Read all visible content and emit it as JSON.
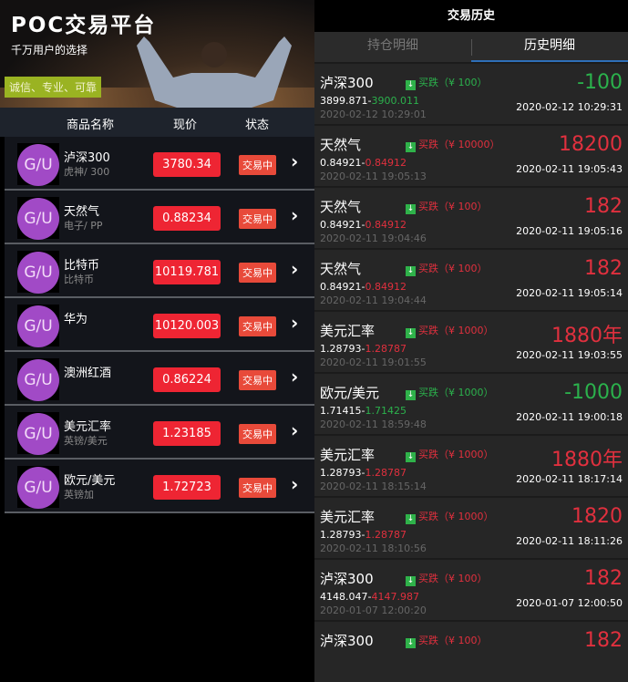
{
  "left": {
    "banner": {
      "title": "POC交易平台",
      "subtitle": "千万用户的选择",
      "tag": "诚信、专业、可靠"
    },
    "header": {
      "name": "商品名称",
      "price": "现价",
      "status": "状态"
    },
    "products": [
      {
        "avatar": "G/U",
        "name": "泸深300",
        "sub": "虎神/ 300",
        "price": "3780.34",
        "status": "交易中"
      },
      {
        "avatar": "G/U",
        "name": "天然气",
        "sub": "电子/ PP",
        "price": "0.88234",
        "status": "交易中"
      },
      {
        "avatar": "G/U",
        "name": "比特币",
        "sub": "比特币",
        "price": "10119.781",
        "status": "交易中"
      },
      {
        "avatar": "G/U",
        "name": "华为",
        "sub": "",
        "price": "10120.003",
        "status": "交易中"
      },
      {
        "avatar": "G/U",
        "name": "澳洲红酒",
        "sub": "",
        "price": "0.86224",
        "status": "交易中"
      },
      {
        "avatar": "G/U",
        "name": "美元汇率",
        "sub": "英镑/美元",
        "price": "1.23185",
        "status": "交易中"
      },
      {
        "avatar": "G/U",
        "name": "欧元/美元",
        "sub": "英镑加",
        "price": "1.72723",
        "status": "交易中"
      }
    ]
  },
  "right": {
    "title": "交易历史",
    "tabs": [
      {
        "label": "持仓明细",
        "active": false
      },
      {
        "label": "历史明细",
        "active": true
      }
    ],
    "colors": {
      "gain": "#2bb14c",
      "loss": "#e0303e"
    },
    "items": [
      {
        "name": "泸深300",
        "direction": "买跌（¥ 100）",
        "open": "3899.871-",
        "close": "3900.011",
        "open_time": "2020-02-12 10:29:01",
        "profit": "-100",
        "close_time": "2020-02-12 10:29:31",
        "color": "green"
      },
      {
        "name": "天然气",
        "direction": "买跌（¥ 10000）",
        "open": "0.84921-",
        "close": "0.84912",
        "open_time": "2020-02-11 19:05:13",
        "profit": "18200",
        "close_time": "2020-02-11 19:05:43",
        "color": "red"
      },
      {
        "name": "天然气",
        "direction": "买跌（¥ 100）",
        "open": "0.84921-",
        "close": "0.84912",
        "open_time": "2020-02-11 19:04:46",
        "profit": "182",
        "close_time": "2020-02-11 19:05:16",
        "color": "red"
      },
      {
        "name": "天然气",
        "direction": "买跌（¥ 100）",
        "open": "0.84921-",
        "close": "0.84912",
        "open_time": "2020-02-11 19:04:44",
        "profit": "182",
        "close_time": "2020-02-11 19:05:14",
        "color": "red"
      },
      {
        "name": "美元汇率",
        "direction": "买跌（¥ 1000）",
        "open": "1.28793-",
        "close": "1.28787",
        "open_time": "2020-02-11 19:01:55",
        "profit": "1880年",
        "close_time": "2020-02-11 19:03:55",
        "color": "red"
      },
      {
        "name": "欧元/美元",
        "direction": "买跌（¥ 1000）",
        "open": "1.71415-",
        "close": "1.71425",
        "open_time": "2020-02-11 18:59:48",
        "profit": "-1000",
        "close_time": "2020-02-11 19:00:18",
        "color": "green"
      },
      {
        "name": "美元汇率",
        "direction": "买跌（¥ 1000）",
        "open": "1.28793-",
        "close": "1.28787",
        "open_time": "2020-02-11 18:15:14",
        "profit": "1880年",
        "close_time": "2020-02-11 18:17:14",
        "color": "red"
      },
      {
        "name": "美元汇率",
        "direction": "买跌（¥ 1000）",
        "open": "1.28793-",
        "close": "1.28787",
        "open_time": "2020-02-11 18:10:56",
        "profit": "1820",
        "close_time": "2020-02-11 18:11:26",
        "color": "red"
      },
      {
        "name": "泸深300",
        "direction": "买跌（¥ 100）",
        "open": "4148.047-",
        "close": "4147.987",
        "open_time": "2020-01-07 12:00:20",
        "profit": "182",
        "close_time": "2020-01-07 12:00:50",
        "color": "red"
      },
      {
        "name": "泸深300",
        "direction": "买跌（¥ 100）",
        "open": "",
        "close": "",
        "open_time": "",
        "profit": "182",
        "close_time": "",
        "color": "red"
      }
    ]
  }
}
